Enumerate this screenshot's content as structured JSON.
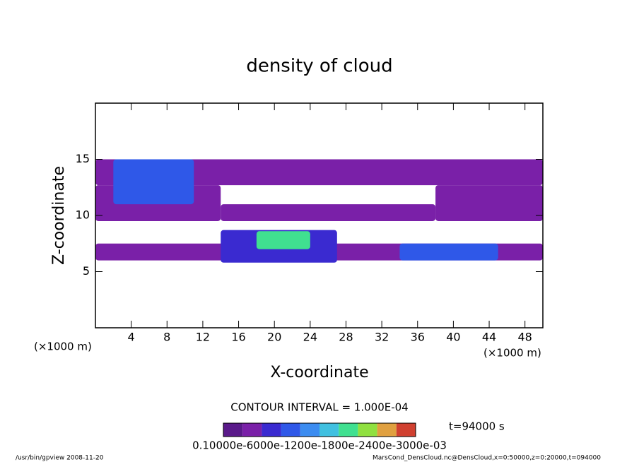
{
  "chart_data": {
    "type": "contour",
    "title": "density of cloud",
    "x_label": "X-coordinate",
    "y_label": "Z-coordinate",
    "x_unit_left": "(×1000 m)",
    "x_unit_right": "(×1000 m)",
    "contour_interval": "CONTOUR INTERVAL = 1.000E-04",
    "time_label": "t=94000 s",
    "colorbar_labels": "0.10000e-6000e-1200e-1800e-2400e-3000e-03",
    "footer_left": "/usr/bin/gpview  2008-11-20",
    "footer_right": "MarsCond_DensCloud.nc@DensCloud,x=0:50000,z=0:20000,t=094000",
    "xlim": [
      0,
      50
    ],
    "ylim": [
      0,
      20
    ],
    "xticks": [
      4,
      8,
      12,
      16,
      20,
      24,
      28,
      32,
      36,
      40,
      44,
      48
    ],
    "yticks": [
      5,
      10,
      15
    ],
    "clim": [
      0,
      1
    ],
    "colors": [
      "#5a1a8a",
      "#7a20a8",
      "#3a2ad0",
      "#2f58e8",
      "#3c8cf0",
      "#40c0e0",
      "#40e090",
      "#90e040",
      "#e0a040",
      "#d04030"
    ],
    "regions": [
      {
        "x": [
          0,
          50
        ],
        "z": [
          12.7,
          15
        ],
        "density": 0.15
      },
      {
        "x": [
          0,
          14
        ],
        "z": [
          9.5,
          12.7
        ],
        "density": 0.15
      },
      {
        "x": [
          38,
          50
        ],
        "z": [
          9.5,
          12.7
        ],
        "density": 0.15
      },
      {
        "x": [
          14,
          38
        ],
        "z": [
          9.5,
          11
        ],
        "density": 0.15
      },
      {
        "x": [
          2,
          11
        ],
        "z": [
          11,
          15
        ],
        "density": 0.3
      },
      {
        "x": [
          0,
          50
        ],
        "z": [
          6,
          7.5
        ],
        "density": 0.15
      },
      {
        "x": [
          14,
          27
        ],
        "z": [
          5.8,
          8.7
        ],
        "density": 0.25
      },
      {
        "x": [
          34,
          45
        ],
        "z": [
          6,
          7.5
        ],
        "density": 0.3
      },
      {
        "x": [
          18,
          24
        ],
        "z": [
          7,
          8.6
        ],
        "density": 0.6
      }
    ]
  }
}
